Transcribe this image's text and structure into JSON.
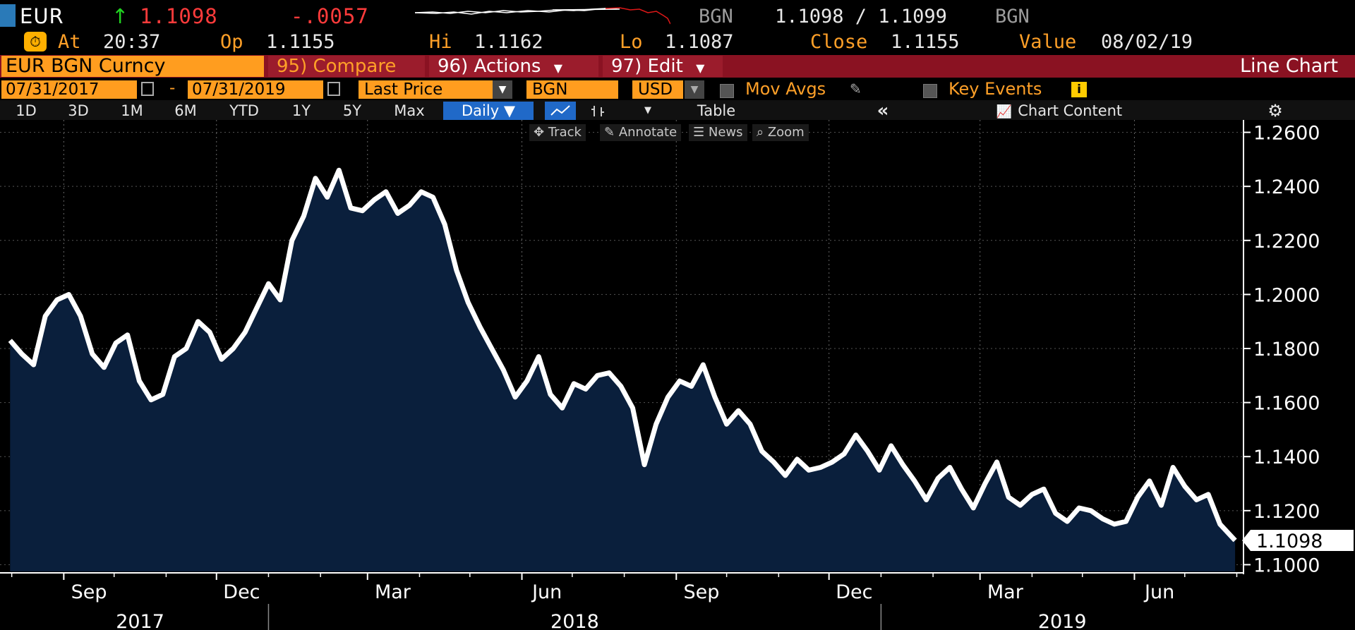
{
  "header": {
    "security": "EUR",
    "last_price": "1.1098",
    "change": "-.0057",
    "ccy_label_left": "BGN",
    "bid_ask": "1.1098 / 1.1099",
    "ccy_label_right": "BGN",
    "at_label": "At",
    "time": "20:37",
    "open_label": "Op",
    "open": "1.1155",
    "high_label": "Hi",
    "high": "1.1162",
    "low_label": "Lo",
    "low": "1.1087",
    "close_label": "Close",
    "close": "1.1155",
    "value_label": "Value",
    "value_date": "08/02/19"
  },
  "toolbar": {
    "ticker": "EUR BGN Curncy",
    "compare": "95) Compare",
    "actions": "96) Actions",
    "edit": "97) Edit",
    "chart_type": "Line Chart",
    "date_start": "07/31/2017",
    "date_sep": "-",
    "date_end": "07/31/2019",
    "field": "Last Price",
    "ccy1": "BGN",
    "ccy2": "USD",
    "mov_avgs": "Mov Avgs",
    "key_events": "Key Events"
  },
  "periods": [
    "1D",
    "3D",
    "1M",
    "6M",
    "YTD",
    "1Y",
    "5Y",
    "Max"
  ],
  "frequency": "Daily ▼",
  "tabs": {
    "table": "Table",
    "collapse": "«",
    "chart_content": "Chart Content"
  },
  "tools": [
    "Track",
    "Annotate",
    "News",
    "Zoom"
  ],
  "colors": {
    "amber": "#ffa028",
    "line": "#ffffff",
    "area": "#0a1f3c",
    "down": "#ff3b3b",
    "up": "#21d421"
  },
  "chart_data": {
    "type": "area",
    "title": "",
    "xlabel": "",
    "ylabel": "",
    "ylim": [
      1.0975,
      1.2625
    ],
    "yticks": [
      "1.2600",
      "1.2400",
      "1.2200",
      "1.2000",
      "1.1800",
      "1.1600",
      "1.1400",
      "1.1200",
      "1.1000"
    ],
    "last_value_label": "1.1098",
    "x_month_ticks": [
      "Sep",
      "Dec",
      "Mar",
      "Jun",
      "Sep",
      "Dec",
      "Mar",
      "Jun"
    ],
    "x_year_labels": [
      "2017",
      "2018",
      "2019"
    ],
    "series": [
      {
        "x": [
          "2017-07-31",
          "2017-08-07",
          "2017-08-14",
          "2017-08-21",
          "2017-08-28",
          "2017-09-04",
          "2017-09-11",
          "2017-09-18",
          "2017-09-25",
          "2017-10-02",
          "2017-10-09",
          "2017-10-16",
          "2017-10-23",
          "2017-10-30",
          "2017-11-06",
          "2017-11-13",
          "2017-11-20",
          "2017-11-27",
          "2017-12-04",
          "2017-12-11",
          "2017-12-18",
          "2017-12-25",
          "2018-01-01",
          "2018-01-08",
          "2018-01-15",
          "2018-01-22",
          "2018-01-29",
          "2018-02-05",
          "2018-02-12",
          "2018-02-19",
          "2018-02-26",
          "2018-03-05",
          "2018-03-12",
          "2018-03-19",
          "2018-03-26",
          "2018-04-02",
          "2018-04-09",
          "2018-04-16",
          "2018-04-23",
          "2018-04-30",
          "2018-05-07",
          "2018-05-14",
          "2018-05-21",
          "2018-05-28",
          "2018-06-04",
          "2018-06-11",
          "2018-06-18",
          "2018-06-25",
          "2018-07-02",
          "2018-07-09",
          "2018-07-16",
          "2018-07-23",
          "2018-07-30",
          "2018-08-06",
          "2018-08-13",
          "2018-08-20",
          "2018-08-27",
          "2018-09-03",
          "2018-09-10",
          "2018-09-17",
          "2018-09-24",
          "2018-10-01",
          "2018-10-08",
          "2018-10-15",
          "2018-10-22",
          "2018-10-29",
          "2018-11-05",
          "2018-11-12",
          "2018-11-19",
          "2018-11-26",
          "2018-12-03",
          "2018-12-10",
          "2018-12-17",
          "2018-12-24",
          "2018-12-31",
          "2019-01-07",
          "2019-01-14",
          "2019-01-21",
          "2019-01-28",
          "2019-02-04",
          "2019-02-11",
          "2019-02-18",
          "2019-02-25",
          "2019-03-04",
          "2019-03-11",
          "2019-03-18",
          "2019-03-25",
          "2019-04-01",
          "2019-04-08",
          "2019-04-15",
          "2019-04-22",
          "2019-04-29",
          "2019-05-06",
          "2019-05-13",
          "2019-05-20",
          "2019-05-27",
          "2019-06-03",
          "2019-06-10",
          "2019-06-17",
          "2019-06-24",
          "2019-07-01",
          "2019-07-08",
          "2019-07-15",
          "2019-07-22",
          "2019-07-31"
        ],
        "values": [
          1.183,
          1.178,
          1.174,
          1.192,
          1.198,
          1.2,
          1.192,
          1.178,
          1.173,
          1.182,
          1.185,
          1.168,
          1.161,
          1.163,
          1.177,
          1.18,
          1.19,
          1.186,
          1.176,
          1.18,
          1.186,
          1.195,
          1.204,
          1.198,
          1.22,
          1.229,
          1.243,
          1.236,
          1.246,
          1.232,
          1.231,
          1.235,
          1.238,
          1.23,
          1.233,
          1.238,
          1.236,
          1.226,
          1.209,
          1.197,
          1.188,
          1.18,
          1.172,
          1.162,
          1.168,
          1.177,
          1.163,
          1.158,
          1.167,
          1.165,
          1.17,
          1.171,
          1.166,
          1.158,
          1.137,
          1.152,
          1.162,
          1.168,
          1.166,
          1.174,
          1.162,
          1.152,
          1.157,
          1.152,
          1.142,
          1.138,
          1.133,
          1.139,
          1.135,
          1.136,
          1.138,
          1.141,
          1.148,
          1.142,
          1.135,
          1.144,
          1.137,
          1.131,
          1.124,
          1.132,
          1.136,
          1.128,
          1.121,
          1.13,
          1.138,
          1.125,
          1.122,
          1.126,
          1.128,
          1.119,
          1.116,
          1.121,
          1.12,
          1.117,
          1.115,
          1.116,
          1.125,
          1.131,
          1.122,
          1.136,
          1.129,
          1.124,
          1.126,
          1.115,
          1.109
        ]
      }
    ]
  }
}
